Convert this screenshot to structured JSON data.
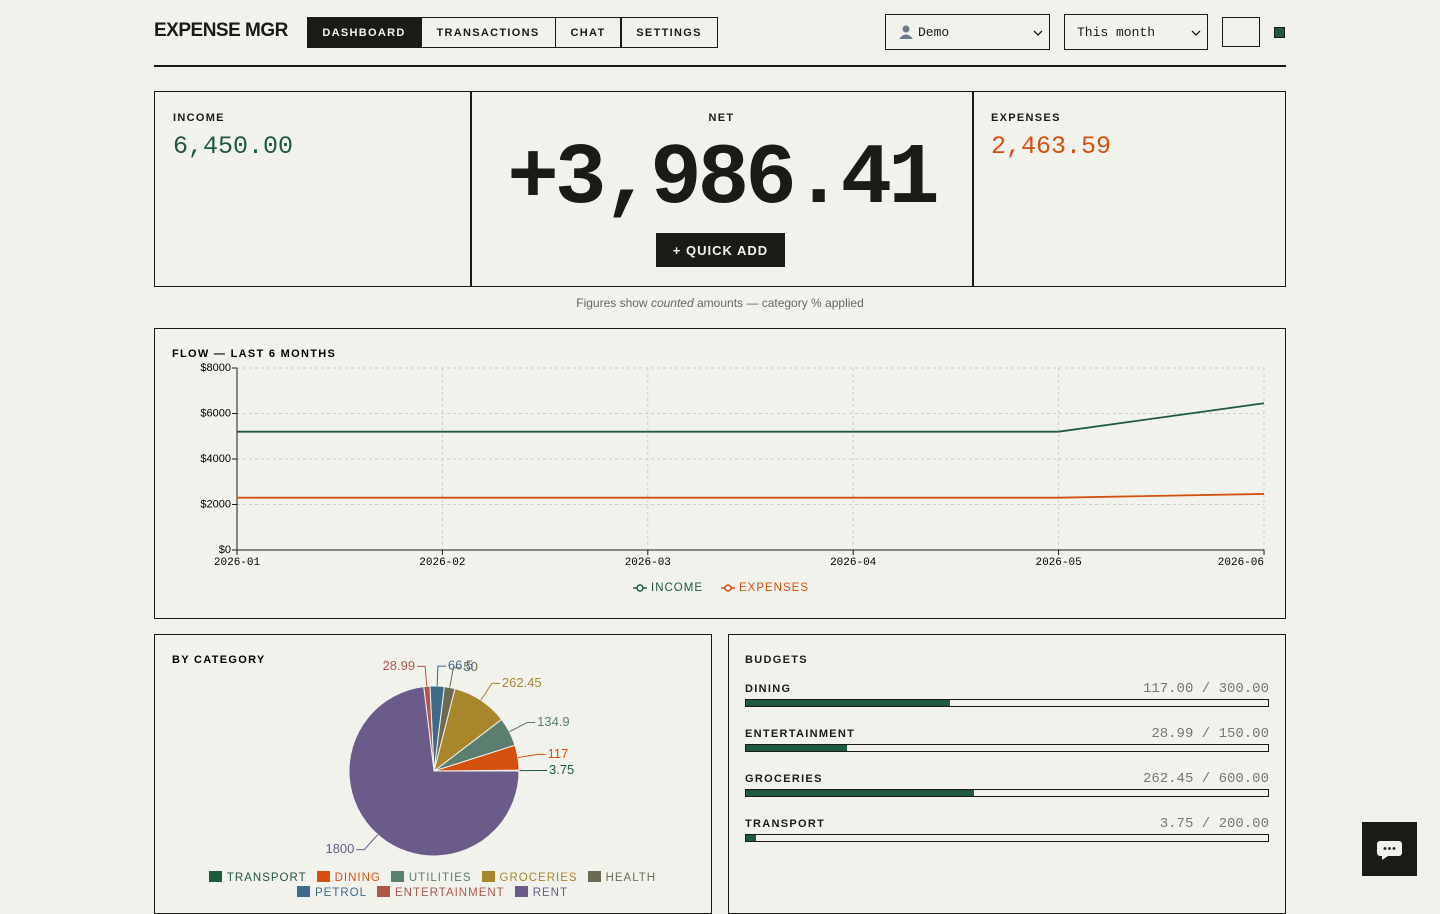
{
  "header": {
    "brand": "EXPENSE MGR",
    "nav": [
      "DASHBOARD",
      "TRANSACTIONS",
      "CHAT",
      "SETTINGS"
    ],
    "user": "Demo",
    "period": "This month"
  },
  "summary": {
    "income": {
      "label": "INCOME",
      "value": "6,450.00"
    },
    "net": {
      "label": "NET",
      "value": "+3,986.41"
    },
    "expenses": {
      "label": "EXPENSES",
      "value": "2,463.59"
    },
    "quick_add": "+ QUICK ADD"
  },
  "note": {
    "before": "Figures show",
    "emphasis": "counted",
    "after": "amounts — category % applied"
  },
  "chart_data": [
    {
      "type": "line",
      "title": "FLOW — LAST 6 MONTHS",
      "categories": [
        "2026-01",
        "2026-02",
        "2026-03",
        "2026-04",
        "2026-05",
        "2026-06"
      ],
      "series": [
        {
          "name": "INCOME",
          "color": "#1f5a3f",
          "values": [
            5200,
            5200,
            5200,
            5200,
            5200,
            6450
          ]
        },
        {
          "name": "EXPENSES",
          "color": "#d4500f",
          "values": [
            2300,
            2300,
            2300,
            2300,
            2300,
            2463.59
          ]
        }
      ],
      "ylim": [
        0,
        8000
      ],
      "yticks": [
        {
          "value": 0,
          "label": "$0"
        },
        {
          "value": 2000,
          "label": "$2000"
        },
        {
          "value": 4000,
          "label": "$4000"
        },
        {
          "value": 6000,
          "label": "$6000"
        },
        {
          "value": 8000,
          "label": "$8000"
        }
      ],
      "grid": true
    },
    {
      "type": "pie",
      "title": "BY CATEGORY",
      "categories": [
        "TRANSPORT",
        "DINING",
        "UTILITIES",
        "GROCERIES",
        "HEALTH",
        "PETROL",
        "ENTERTAINMENT",
        "RENT"
      ],
      "values": [
        3.75,
        117,
        134.9,
        262.45,
        50,
        66.5,
        28.99,
        1800
      ],
      "colors": [
        "#1f5a3f",
        "#d4500f",
        "#5b7f6e",
        "#a8862c",
        "#6b6b55",
        "#3e6a8a",
        "#b0574c",
        "#6b5b8a"
      ]
    }
  ],
  "budgets": {
    "title": "BUDGETS",
    "separator": "/",
    "color": "#1f5a3f",
    "items": [
      {
        "name": "DINING",
        "spent": {
          "value": 117,
          "label": "117.00"
        },
        "limit": {
          "value": 300,
          "label": "300.00"
        }
      },
      {
        "name": "ENTERTAINMENT",
        "spent": {
          "value": 28.99,
          "label": "28.99"
        },
        "limit": {
          "value": 150,
          "label": "150.00"
        }
      },
      {
        "name": "GROCERIES",
        "spent": {
          "value": 262.45,
          "label": "262.45"
        },
        "limit": {
          "value": 600,
          "label": "600.00"
        }
      },
      {
        "name": "TRANSPORT",
        "spent": {
          "value": 3.75,
          "label": "3.75"
        },
        "limit": {
          "value": 200,
          "label": "200.00"
        }
      }
    ]
  }
}
